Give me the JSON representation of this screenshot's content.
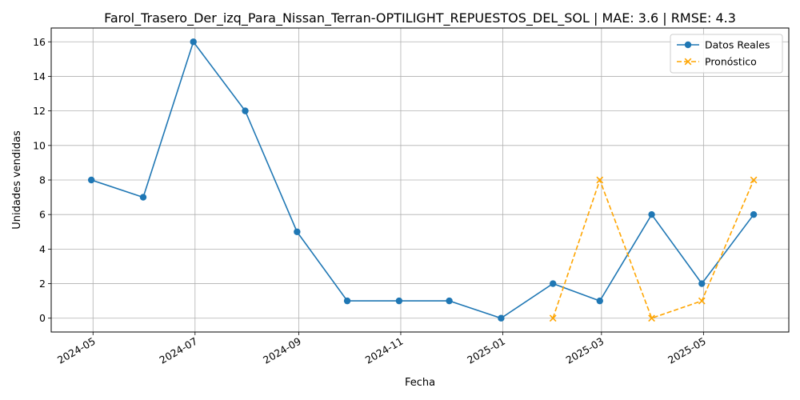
{
  "chart_data": {
    "type": "line",
    "title": "Farol_Trasero_Der_izq_Para_Nissan_Terran-OPTILIGHT_REPUESTOS_DEL_SOL | MAE: 3.6 | RMSE: 4.3",
    "xlabel": "Fecha",
    "ylabel": "Unidades vendidas",
    "xlim": [
      "2024-04-06",
      "2025-06-21"
    ],
    "ylim": [
      -0.8,
      16.8
    ],
    "grid": true,
    "legend_position": "top-right",
    "x_ticks": [
      "2024-05-01",
      "2024-07-01",
      "2024-09-01",
      "2024-11-01",
      "2025-01-01",
      "2025-03-01",
      "2025-05-01"
    ],
    "x_tick_labels": [
      "2024-05",
      "2024-07",
      "2024-09",
      "2024-11",
      "2025-01",
      "2025-03",
      "2025-05"
    ],
    "y_ticks": [
      0,
      2,
      4,
      6,
      8,
      10,
      12,
      14,
      16
    ],
    "series": [
      {
        "name": "Datos Reales",
        "color": "#1f77b4",
        "linestyle": "solid",
        "marker": "circle",
        "x": [
          "2024-04-30",
          "2024-05-31",
          "2024-06-30",
          "2024-07-31",
          "2024-08-31",
          "2024-09-30",
          "2024-10-31",
          "2024-11-30",
          "2024-12-31",
          "2025-01-31",
          "2025-02-28",
          "2025-03-31",
          "2025-04-30",
          "2025-05-31"
        ],
        "values": [
          8,
          7,
          16,
          12,
          5,
          1,
          1,
          1,
          0,
          2,
          1,
          6,
          2,
          6
        ]
      },
      {
        "name": "Pronóstico",
        "color": "#ffa500",
        "linestyle": "dashed",
        "marker": "x",
        "x": [
          "2025-01-31",
          "2025-02-28",
          "2025-03-31",
          "2025-04-30",
          "2025-05-31"
        ],
        "values": [
          0,
          8,
          0,
          1,
          8
        ]
      }
    ]
  }
}
